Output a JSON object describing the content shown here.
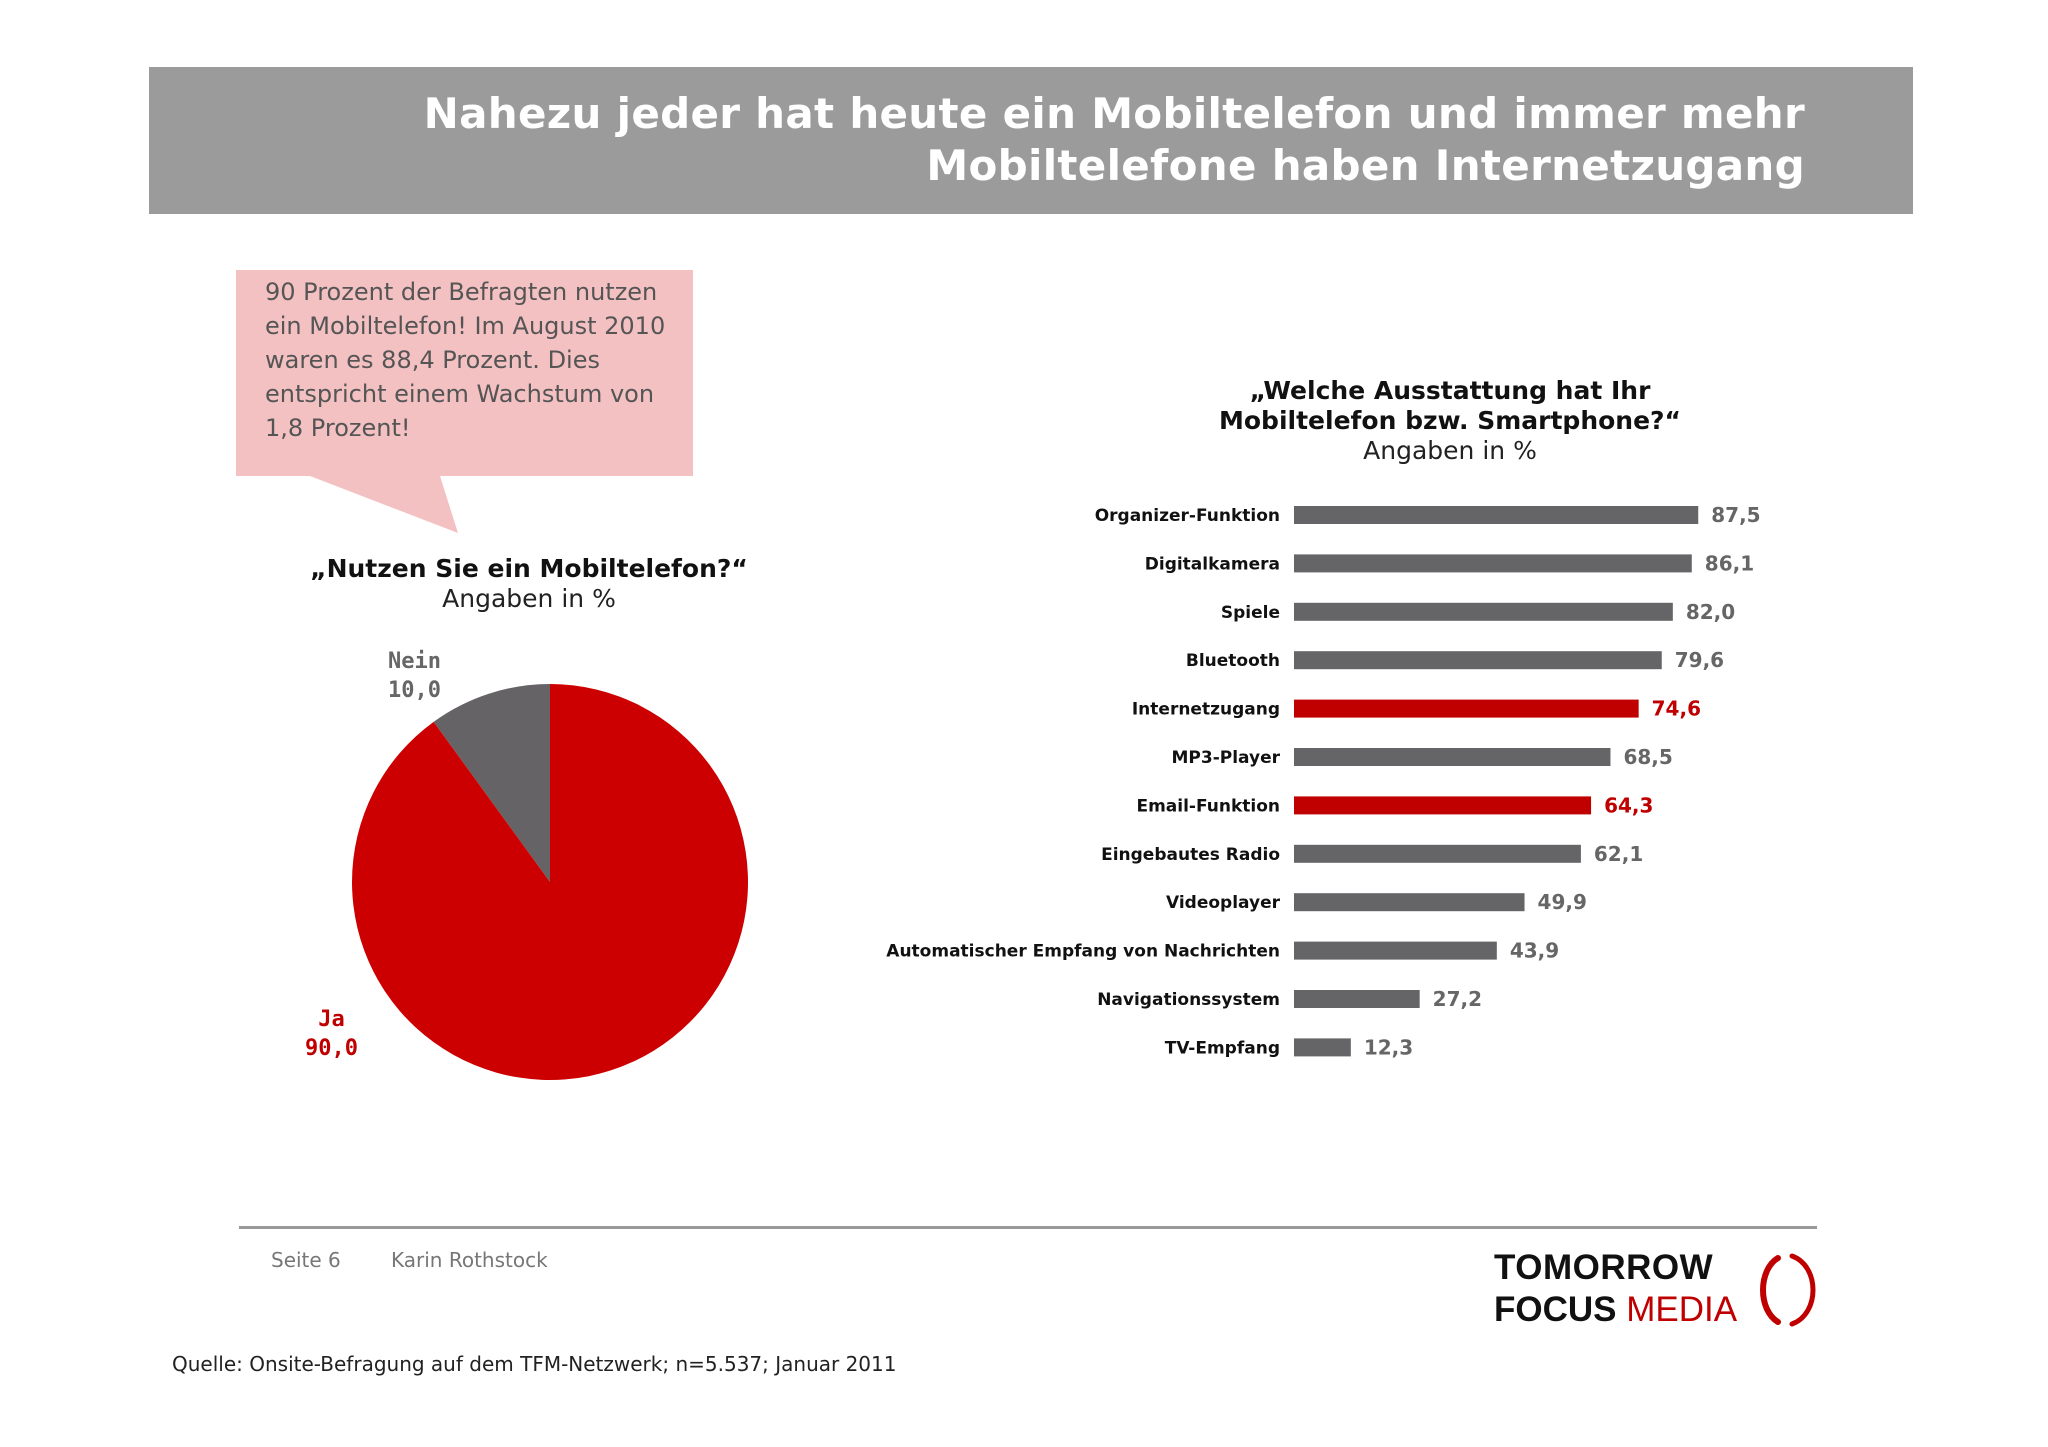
{
  "header": {
    "title_line1": "Nahezu jeder hat heute ein Mobiltelefon und immer mehr",
    "title_line2": "Mobiltelefone haben Internetzugang",
    "background": "#9b9b9b"
  },
  "callout": {
    "text": "90 Prozent der Befragten nutzen ein Mobiltelefon! Im August 2010 waren es 88,4 Prozent. Dies entspricht einem Wachstum von 1,8 Prozent!",
    "background": "#f4c1c3"
  },
  "chart_data": [
    {
      "type": "pie",
      "title": "„Nutzen Sie ein Mobiltelefon?“",
      "subtitle": "Angaben in %",
      "slices": [
        {
          "name": "Nein",
          "value": 10.0,
          "label": "10,0",
          "color": "#666366"
        },
        {
          "name": "Ja",
          "value": 90.0,
          "label": "90,0",
          "color": "#cc0000"
        }
      ]
    },
    {
      "type": "bar",
      "orientation": "horizontal",
      "title": "„Welche Ausstattung hat Ihr Mobiltelefon bzw. Smartphone?“",
      "subtitle": "Angaben in %",
      "xlim": [
        0,
        100
      ],
      "grid": false,
      "categories": [
        "Organizer-Funktion",
        "Digitalkamera",
        "Spiele",
        "Bluetooth",
        "Internetzugang",
        "MP3-Player",
        "Email-Funktion",
        "Eingebautes Radio",
        "Videoplayer",
        "Automatischer Empfang von Nachrichten",
        "Navigationssystem",
        "TV-Empfang"
      ],
      "values": [
        87.5,
        86.1,
        82.0,
        79.6,
        74.6,
        68.5,
        64.3,
        62.1,
        49.9,
        43.9,
        27.2,
        12.3
      ],
      "value_labels": [
        "87,5",
        "86,1",
        "82,0",
        "79,6",
        "74,6",
        "68,5",
        "64,3",
        "62,1",
        "49,9",
        "43,9",
        "27,2",
        "12,3"
      ],
      "highlighted": [
        false,
        false,
        false,
        false,
        true,
        false,
        true,
        false,
        false,
        false,
        false,
        false
      ],
      "colors": {
        "default": "#656466",
        "highlight": "#c00000"
      }
    }
  ],
  "footer": {
    "page": "Seite 6",
    "author": "Karin Rothstock",
    "source": "Quelle: Onsite-Befragung auf dem TFM-Netzwerk; n=5.537; Januar 2011"
  },
  "logo": {
    "top": "TOMORROW",
    "focus": "FOCUS",
    "media": "MEDIA",
    "accent": "#c00000"
  }
}
